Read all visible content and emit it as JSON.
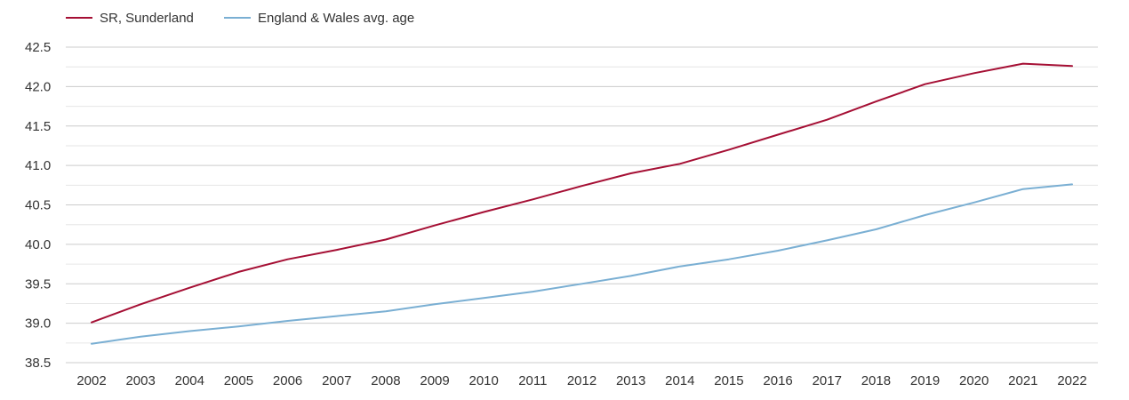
{
  "chart_data": {
    "type": "line",
    "title": "",
    "xlabel": "",
    "ylabel": "",
    "x": [
      "2002",
      "2003",
      "2004",
      "2005",
      "2006",
      "2007",
      "2008",
      "2009",
      "2010",
      "2011",
      "2012",
      "2013",
      "2014",
      "2015",
      "2016",
      "2017",
      "2018",
      "2019",
      "2020",
      "2021",
      "2022"
    ],
    "ylim": [
      38.5,
      42.5
    ],
    "yticks": [
      "38.5",
      "39.0",
      "39.5",
      "40.0",
      "40.5",
      "41.0",
      "41.5",
      "42.0",
      "42.5"
    ],
    "grid": "horizontal",
    "legend_position": "top-left",
    "series": [
      {
        "name": "SR, Sunderland",
        "color": "#a50f34",
        "values": [
          39.01,
          39.24,
          39.45,
          39.65,
          39.81,
          39.93,
          40.06,
          40.24,
          40.41,
          40.57,
          40.74,
          40.9,
          41.02,
          41.2,
          41.39,
          41.58,
          41.81,
          42.03,
          42.17,
          42.29,
          42.26
        ]
      },
      {
        "name": "England & Wales avg. age",
        "color": "#7aafd3",
        "values": [
          38.74,
          38.83,
          38.9,
          38.96,
          39.03,
          39.09,
          39.15,
          39.24,
          39.32,
          39.4,
          39.5,
          39.6,
          39.72,
          39.81,
          39.92,
          40.05,
          40.19,
          40.37,
          40.53,
          40.7,
          40.76
        ]
      }
    ]
  }
}
